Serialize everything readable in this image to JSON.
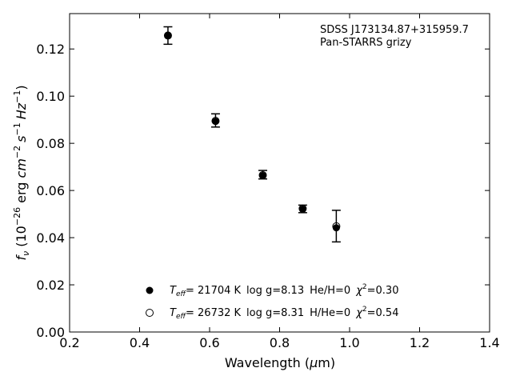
{
  "chart_data": {
    "type": "scatter",
    "annotations": [
      "SDSS J173134.87+315959.7",
      "Pan-STARRS grizy"
    ],
    "xlabel": {
      "prefix": "Wavelength (",
      "mu": "μ",
      "suffix": "m)"
    },
    "ylabel": {
      "f": "f",
      "nu": "ν",
      "open": " (10",
      "exp26": "−26",
      "erg": " erg ",
      "cm": "cm",
      "expm2": "−2",
      "s": "s",
      "expm1a": "−1",
      "hz": "Hz",
      "expm1b": "−1",
      "close": ")"
    },
    "xlim": [
      0.2,
      1.4
    ],
    "ylim": [
      0.0,
      0.135
    ],
    "xticks": [
      0.2,
      0.4,
      0.6,
      0.8,
      1.0,
      1.2,
      1.4
    ],
    "xtick_labels": [
      "0.2",
      "0.4",
      "0.6",
      "0.8",
      "1.0",
      "1.2",
      "1.4"
    ],
    "yticks": [
      0.0,
      0.02,
      0.04,
      0.06,
      0.08,
      0.1,
      0.12
    ],
    "ytick_labels": [
      "0.00",
      "0.02",
      "0.04",
      "0.06",
      "0.08",
      "0.10",
      "0.12"
    ],
    "grid": false,
    "legend_placement": "bottom-center",
    "observed": {
      "x": [
        0.481,
        0.617,
        0.752,
        0.866,
        0.962
      ],
      "y": [
        0.1257,
        0.0897,
        0.0667,
        0.0522,
        0.0449
      ],
      "yerr": [
        0.0037,
        0.0028,
        0.0018,
        0.0016,
        0.0067
      ]
    },
    "series": [
      {
        "marker": "filled",
        "x": [
          0.481,
          0.617,
          0.752,
          0.866,
          0.962
        ],
        "y": [
          0.1257,
          0.0893,
          0.0663,
          0.0521,
          0.0442
        ],
        "legend": {
          "teff": "T",
          "eff": "eff",
          "temp": "= 21704 K",
          "logg": "log g=8.13",
          "comp": "He/H=0",
          "chi": "χ",
          "two": "2",
          "chival": "=0.30"
        }
      },
      {
        "marker": "open",
        "x": [
          0.481,
          0.617,
          0.752,
          0.866,
          0.962
        ],
        "y": [
          0.1257,
          0.0895,
          0.0665,
          0.0523,
          0.0448
        ],
        "legend": {
          "teff": "T",
          "eff": "eff",
          "temp": "= 26732 K",
          "logg": "log g=8.31",
          "comp": "H/He=0",
          "chi": "χ",
          "two": "2",
          "chival": "=0.54"
        }
      }
    ],
    "colors": {
      "axis": "#000000",
      "marker": "#000000",
      "background": "#ffffff"
    }
  }
}
